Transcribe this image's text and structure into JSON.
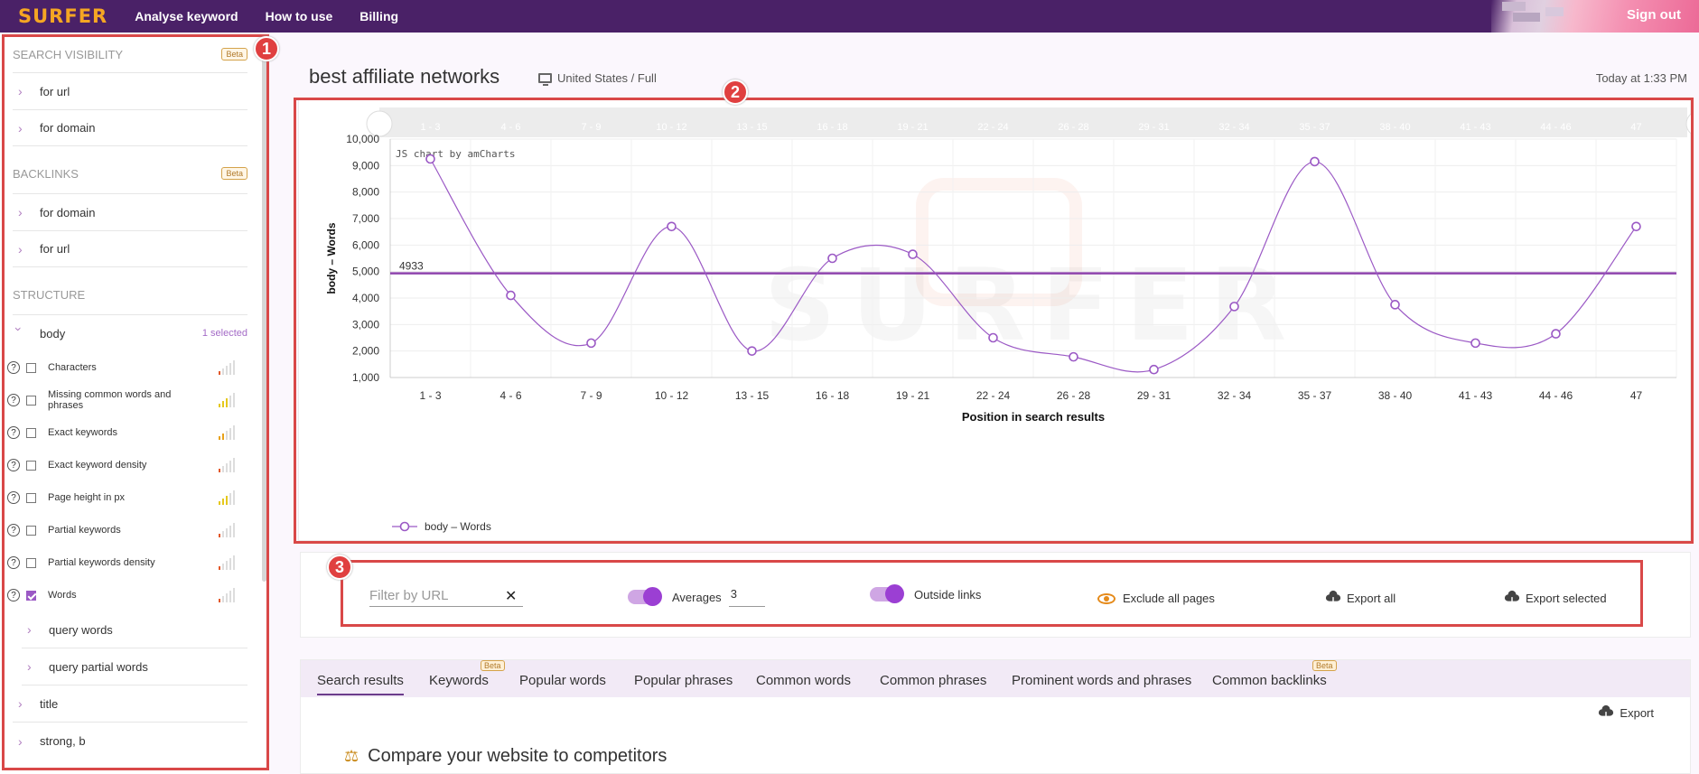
{
  "topbar": {
    "logo": "SURFER",
    "nav": [
      "Analyse keyword",
      "How to use",
      "Billing"
    ],
    "signout": "Sign out"
  },
  "sidebar": {
    "search_visibility": {
      "title": "SEARCH VISIBILITY",
      "badge": "Beta",
      "items": [
        "for url",
        "for domain"
      ]
    },
    "backlinks": {
      "title": "BACKLINKS",
      "badge": "Beta",
      "items": [
        "for domain",
        "for url"
      ]
    },
    "structure": {
      "title": "STRUCTURE",
      "body_label": "body",
      "body_selected": "1 selected",
      "metrics": [
        {
          "label": "Characters",
          "checked": false,
          "level": 1
        },
        {
          "label": "Missing common words and phrases",
          "checked": false,
          "level": 3
        },
        {
          "label": "Exact keywords",
          "checked": false,
          "level": 2
        },
        {
          "label": "Exact keyword density",
          "checked": false,
          "level": 1
        },
        {
          "label": "Page height in px",
          "checked": false,
          "level": 3
        },
        {
          "label": "Partial keywords",
          "checked": false,
          "level": 1
        },
        {
          "label": "Partial keywords density",
          "checked": false,
          "level": 1
        },
        {
          "label": "Words",
          "checked": true,
          "level": 1
        }
      ],
      "sub_items": [
        "query words",
        "query partial words"
      ],
      "more_items": [
        "title",
        "strong, b"
      ]
    }
  },
  "header": {
    "title": "best affiliate networks",
    "location": "United States / Full",
    "timestamp": "Today at 1:33 PM"
  },
  "chart_data": {
    "type": "line",
    "credit": "JS chart by amCharts",
    "watermark": "SURFER",
    "xlabel": "Position in search results",
    "ylabel": "body – Words",
    "ylim": [
      1000,
      10000
    ],
    "yticks": [
      "1,000",
      "2,000",
      "3,000",
      "4,000",
      "5,000",
      "6,000",
      "7,000",
      "8,000",
      "9,000",
      "10,000"
    ],
    "categories": [
      "1 - 3",
      "4 - 6",
      "7 - 9",
      "10 - 12",
      "13 - 15",
      "16 - 18",
      "19 - 21",
      "22 - 24",
      "26 - 28",
      "29 - 31",
      "32 - 34",
      "35 - 37",
      "38 - 40",
      "41 - 43",
      "44 - 46",
      "47"
    ],
    "scrollbar_labels": [
      "1 - 3",
      "4 - 6",
      "7 - 9",
      "10 - 12",
      "13 - 15",
      "16 - 18",
      "19 - 21",
      "22 - 24",
      "26 - 28",
      "29 - 31",
      "32 - 34",
      "35 - 37",
      "38 - 40",
      "41 - 43",
      "44 - 46",
      "47"
    ],
    "series": [
      {
        "name": "body – Words",
        "color": "#9b59c5",
        "values": [
          9250,
          4100,
          2300,
          6700,
          2000,
          5500,
          5650,
          2500,
          1780,
          1300,
          3680,
          9150,
          3750,
          2300,
          2650,
          6700
        ]
      }
    ],
    "average_line": {
      "value": 4933,
      "label": "4933",
      "color": "#8e44ad"
    },
    "grid": true,
    "legend": "bottom-left"
  },
  "controls": {
    "filter_placeholder": "Filter by URL",
    "averages_label": "Averages",
    "averages_value": "3",
    "outside_links_label": "Outside links",
    "exclude_label": "Exclude all pages",
    "export_all": "Export all",
    "export_selected": "Export selected"
  },
  "tabs": {
    "items": [
      "Search results",
      "Keywords",
      "Popular words",
      "Popular phrases",
      "Common words",
      "Common phrases",
      "Prominent words and phrases",
      "Common backlinks"
    ],
    "beta_label": "Beta",
    "export": "Export",
    "compare_title": "Compare your website to competitors"
  },
  "annotations": [
    "1",
    "2",
    "3"
  ]
}
